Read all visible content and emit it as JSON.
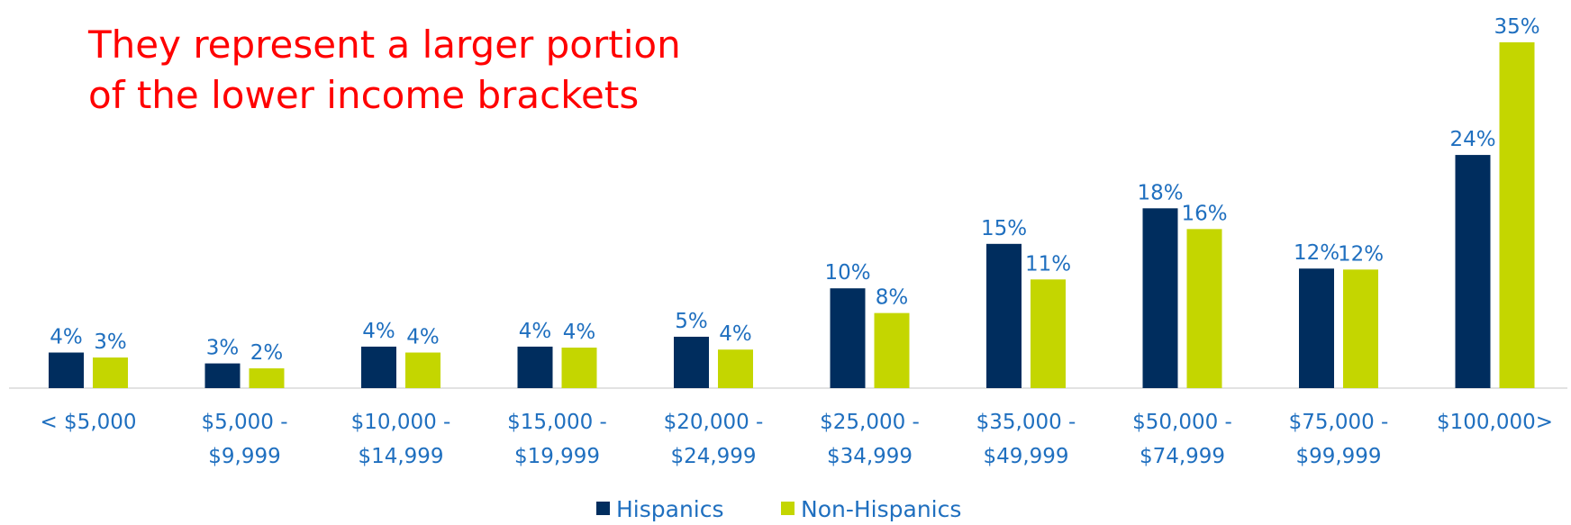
{
  "chart_data": {
    "type": "bar",
    "title": [
      "They represent a larger portion",
      "of the lower income brackets"
    ],
    "categories": [
      [
        "< $5,000"
      ],
      [
        "$5,000 -",
        "$9,999"
      ],
      [
        "$10,000 -",
        "$14,999"
      ],
      [
        "$15,000 -",
        "$19,999"
      ],
      [
        "$20,000 -",
        "$24,999"
      ],
      [
        "$25,000 -",
        "$34,999"
      ],
      [
        "$35,000 -",
        "$49,999"
      ],
      [
        "$50,000 -",
        "$74,999"
      ],
      [
        "$75,000 -",
        "$99,999"
      ],
      [
        "$100,000>"
      ]
    ],
    "series": [
      {
        "name": "Hispanics",
        "color": "#002d5e",
        "values": [
          3.6,
          2.5,
          4.2,
          4.2,
          5.2,
          10.1,
          14.6,
          18.2,
          12.1,
          23.6
        ],
        "value_labels": [
          "4%",
          "3%",
          "4%",
          "4%",
          "5%",
          "10%",
          "15%",
          "18%",
          "12%",
          "24%"
        ]
      },
      {
        "name": "Non-Hispanics",
        "color": "#c4d600",
        "values": [
          3.1,
          2.0,
          3.6,
          4.1,
          3.9,
          7.6,
          11.0,
          16.1,
          12.0,
          35.0
        ],
        "value_labels": [
          "3%",
          "2%",
          "4%",
          "4%",
          "4%",
          "8%",
          "11%",
          "16%",
          "12%",
          "35%"
        ]
      }
    ],
    "legend": "bottom"
  }
}
